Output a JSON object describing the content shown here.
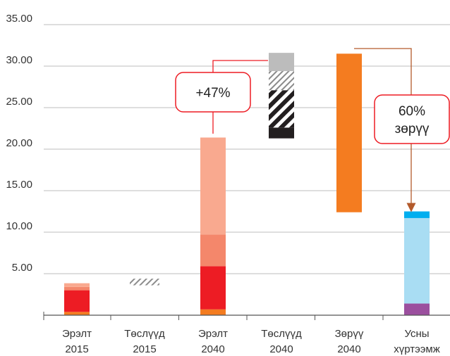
{
  "chart_data": {
    "type": "bar",
    "ylim": [
      0,
      35
    ],
    "yticks": [
      "35.00",
      "30.00",
      "25.00",
      "20.00",
      "15.00",
      "10.00",
      "5.00"
    ],
    "categories": [
      [
        "Эрэлт",
        "2015"
      ],
      [
        "Төслүүд",
        "2015"
      ],
      [
        "Эрэлт",
        "2040"
      ],
      [
        "Төслүүд",
        "2040"
      ],
      [
        "Зөрүү",
        "2040"
      ],
      [
        "Усны",
        "хүртээмж"
      ]
    ],
    "bars": [
      {
        "category": 0,
        "segments": [
          {
            "from": 0,
            "to": 0.4,
            "color": "#f47c20"
          },
          {
            "from": 0.4,
            "to": 3.0,
            "color": "#ed1c24"
          },
          {
            "from": 3.0,
            "to": 3.4,
            "color": "#f4876b"
          },
          {
            "from": 3.4,
            "to": 3.85,
            "color": "#f9a98f"
          }
        ]
      },
      {
        "category": 1,
        "segments": [
          {
            "from": 3.6,
            "to": 4.4,
            "color": "#8c8c8c",
            "pattern": "hatch-light"
          }
        ]
      },
      {
        "category": 2,
        "segments": [
          {
            "from": 0,
            "to": 0.7,
            "color": "#f47c20"
          },
          {
            "from": 0.7,
            "to": 5.9,
            "color": "#ed1c24"
          },
          {
            "from": 5.9,
            "to": 9.7,
            "color": "#f4876b"
          },
          {
            "from": 9.7,
            "to": 21.4,
            "color": "#f9a98f"
          }
        ]
      },
      {
        "category": 3,
        "segments": [
          {
            "from": 21.3,
            "to": 22.6,
            "color": "#231f20"
          },
          {
            "from": 22.6,
            "to": 27.1,
            "color": "#231f20",
            "pattern": "hatch-heavy"
          },
          {
            "from": 27.1,
            "to": 29.4,
            "color": "#8c8c8c",
            "pattern": "hatch-light"
          },
          {
            "from": 29.4,
            "to": 31.6,
            "color": "#bcbcbc"
          }
        ]
      },
      {
        "category": 4,
        "segments": [
          {
            "from": 12.4,
            "to": 31.5,
            "color": "#f47c20"
          }
        ]
      },
      {
        "category": 5,
        "segments": [
          {
            "from": 0,
            "to": 1.4,
            "color": "#9b4f9e"
          },
          {
            "from": 1.4,
            "to": 11.7,
            "color": "#a9ddf3"
          },
          {
            "from": 11.7,
            "to": 12.5,
            "color": "#00aeef"
          }
        ]
      }
    ],
    "callouts": [
      {
        "lines": [
          "+47%"
        ]
      },
      {
        "lines": [
          "60%",
          "зөрүү"
        ]
      }
    ],
    "colors": {
      "axis": "#555555",
      "grid": "#bdbdbd",
      "callout_border": "#ed1c24",
      "arrow": "#b35a2b"
    }
  }
}
